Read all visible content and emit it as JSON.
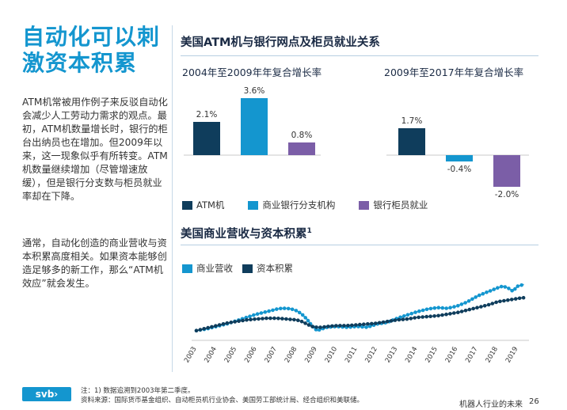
{
  "page": {
    "title": "自动化可以刺激资本积累",
    "intro_paragraph_1": "ATM机常被用作例子来反驳自动化会减少人工劳动力需求的观点。最初，ATM机数量增长时，银行的柜台出纳员也在增加。但2009年以来，这一现象似乎有所转变。ATM机数量继续增加（尽管增速放缓），但是银行分支数与柜员就业率却在下降。",
    "intro_paragraph_2": "通常，自动化创造的商业营收与资本积累高度相关。如果资本能够创造足够多的新工作，那么“ATM机效应”就会发生。"
  },
  "section1": {
    "title": "美国ATM机与银行网点及柜员就业关系",
    "legend": [
      "ATM机",
      "商业银行分支机构",
      "银行柜员就业"
    ]
  },
  "section2": {
    "title": "美国商业营收与资本积累",
    "title_sup": "1",
    "legend": [
      "商业营收",
      "资本积累"
    ]
  },
  "colors": {
    "atm": "#0f3d5c",
    "branch": "#1496cf",
    "teller": "#7b5ea7",
    "revenue": "#1496cf",
    "capital": "#0f3d5c",
    "accent": "#1496cf"
  },
  "chart_data": [
    {
      "type": "bar",
      "title": "2004年至2009年年复合增长率",
      "series": [
        {
          "name": "ATM机",
          "value": 2.1,
          "label": "2.1%"
        },
        {
          "name": "商业银行分支机构",
          "value": 3.6,
          "label": "3.6%"
        },
        {
          "name": "银行柜员就业",
          "value": 0.8,
          "label": "0.8%"
        }
      ]
    },
    {
      "type": "bar",
      "title": "2009年至2017年年复合增长率",
      "series": [
        {
          "name": "ATM机",
          "value": 1.7,
          "label": "1.7%"
        },
        {
          "name": "商业银行分支机构",
          "value": -0.4,
          "label": "-0.4%"
        },
        {
          "name": "银行柜员就业",
          "value": -2.0,
          "label": "-2.0%"
        }
      ]
    },
    {
      "type": "line",
      "x_ticks": [
        "2003",
        "2004",
        "2005",
        "2006",
        "2007",
        "2008",
        "2009",
        "2010",
        "2011",
        "2012",
        "2013",
        "2014",
        "2015",
        "2016",
        "2017",
        "2018",
        "2019"
      ],
      "x_range": [
        2003.0,
        2019.4
      ],
      "y_range": [
        0,
        100
      ],
      "series": [
        {
          "name": "商业营收",
          "x": [
            2003.0,
            2003.5,
            2004.0,
            2004.5,
            2005.0,
            2005.5,
            2006.0,
            2006.5,
            2007.0,
            2007.25,
            2007.5,
            2007.75,
            2008.0,
            2008.25,
            2008.5,
            2008.75,
            2009.0,
            2009.25,
            2009.5,
            2010.0,
            2010.5,
            2011.0,
            2011.5,
            2012.0,
            2012.5,
            2013.0,
            2013.5,
            2014.0,
            2014.5,
            2015.0,
            2015.5,
            2016.0,
            2016.5,
            2017.0,
            2017.5,
            2018.0,
            2018.25,
            2018.5,
            2018.75,
            2019.0,
            2019.3
          ],
          "y": [
            8,
            10,
            13,
            16,
            20,
            24,
            28,
            31,
            34,
            35,
            35,
            34,
            32,
            28,
            22,
            14,
            8,
            10,
            12,
            13,
            12,
            13,
            12,
            16,
            18,
            23,
            27,
            31,
            34,
            36,
            35,
            38,
            43,
            50,
            55,
            60,
            62,
            60,
            56,
            62,
            64
          ]
        },
        {
          "name": "资本积累",
          "x": [
            2003.0,
            2003.5,
            2004.0,
            2004.5,
            2005.0,
            2005.5,
            2006.0,
            2006.5,
            2007.0,
            2007.5,
            2008.0,
            2008.25,
            2008.5,
            2008.75,
            2009.0,
            2009.25,
            2009.5,
            2010.0,
            2010.5,
            2011.0,
            2011.5,
            2012.0,
            2012.5,
            2013.0,
            2013.5,
            2014.0,
            2014.5,
            2015.0,
            2015.5,
            2016.0,
            2016.5,
            2017.0,
            2017.5,
            2018.0,
            2018.5,
            2019.0,
            2019.3
          ],
          "y": [
            8,
            11,
            14,
            17,
            19,
            21,
            22,
            23,
            23,
            22,
            21,
            19,
            16,
            13,
            12,
            12,
            13,
            14,
            14,
            15,
            16,
            17,
            19,
            21,
            22,
            24,
            25,
            26,
            28,
            30,
            33,
            36,
            39,
            43,
            45,
            47,
            48
          ]
        }
      ]
    }
  ],
  "footer": {
    "logo": "svb›",
    "footnote": "注：1) 数据追溯到2003年第二季度。",
    "source": "资料来源：国际货币基金组织、自动柜员机行业协会、美国劳工部统计局、经合组织和美联储。",
    "report_name": "机器人行业的未来",
    "page_number": "26"
  }
}
